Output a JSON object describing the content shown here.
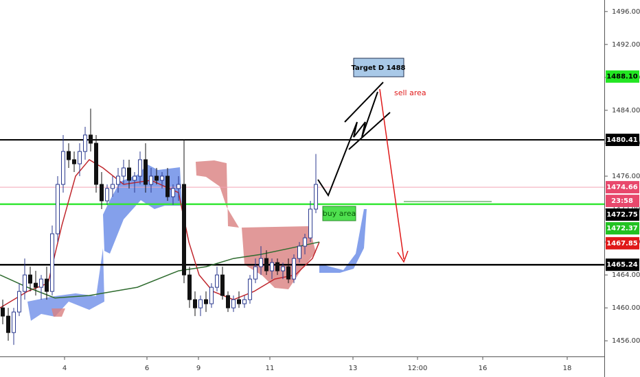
{
  "chart_data": {
    "type": "candlestick",
    "x": [
      4,
      12,
      20,
      28,
      36,
      44,
      52,
      60,
      68,
      76,
      84,
      92,
      100,
      108,
      116,
      124,
      132,
      140,
      148,
      156,
      164,
      172,
      180,
      188,
      196,
      204,
      212,
      220,
      228,
      236,
      244,
      252,
      260,
      268,
      276,
      284,
      292,
      300,
      308,
      316,
      324,
      332,
      340,
      348,
      356,
      364,
      372,
      380,
      388,
      396,
      404,
      412,
      420,
      428,
      436,
      444,
      452,
      460
    ],
    "open": [
      1460,
      1459,
      1457,
      1459.5,
      1462,
      1464,
      1463,
      1462.5,
      1463.5,
      1462,
      1469,
      1475,
      1479,
      1478,
      1477.5,
      1479,
      1481,
      1480,
      1475,
      1473,
      1474.5,
      1475,
      1476,
      1477,
      1475.5,
      1476,
      1478,
      1475,
      1476,
      1475.5,
      1476,
      1473.5,
      1474.5,
      1475,
      1464,
      1461,
      1460,
      1461,
      1460.5,
      1462.5,
      1464,
      1461.5,
      1460,
      1461,
      1460.5,
      1461,
      1463.5,
      1465,
      1466,
      1464.5,
      1465.5,
      1464.5,
      1465,
      1463.5,
      1466,
      1467.5,
      1468.5,
      1472
    ],
    "high": [
      1461,
      1460,
      1460,
      1463,
      1466,
      1465,
      1464.5,
      1464,
      1465,
      1470,
      1476,
      1481,
      1480,
      1479,
      1480,
      1482,
      1484.2,
      1481,
      1476.5,
      1475,
      1476,
      1477,
      1478,
      1478,
      1476.5,
      1479,
      1480,
      1477,
      1477,
      1476.5,
      1477,
      1475,
      1476,
      1480.5,
      1465,
      1462,
      1461.5,
      1462,
      1463,
      1465,
      1465,
      1462,
      1461.5,
      1462,
      1461.5,
      1464,
      1466,
      1467.5,
      1467,
      1466,
      1466,
      1465.5,
      1466,
      1466.5,
      1468,
      1469,
      1473,
      1478.7
    ],
    "low": [
      1458,
      1456,
      1455.5,
      1459,
      1461,
      1462,
      1461.5,
      1461,
      1461,
      1461.5,
      1468,
      1474,
      1477,
      1476.5,
      1476,
      1478,
      1479,
      1474,
      1472,
      1472.5,
      1473.5,
      1474,
      1475,
      1474.5,
      1474,
      1475,
      1474,
      1474,
      1475,
      1474.5,
      1473,
      1472.5,
      1473,
      1463,
      1460,
      1459,
      1459,
      1459.5,
      1460,
      1462,
      1461,
      1459.5,
      1459.5,
      1460,
      1460,
      1460.5,
      1463,
      1464,
      1464,
      1463.5,
      1464,
      1463.5,
      1463,
      1463,
      1465.5,
      1466.5,
      1468,
      1471.5
    ],
    "close": [
      1459,
      1457,
      1459.5,
      1462,
      1464,
      1463,
      1462.5,
      1463.5,
      1462,
      1469,
      1475,
      1479,
      1478,
      1477.5,
      1479,
      1481,
      1480,
      1475,
      1473,
      1474.5,
      1475,
      1476,
      1477,
      1475.5,
      1476,
      1478,
      1475,
      1476,
      1475.5,
      1476,
      1473.5,
      1474.5,
      1475,
      1464,
      1461,
      1460,
      1461,
      1460.5,
      1462.5,
      1464,
      1461.5,
      1460,
      1461,
      1460.5,
      1461,
      1463.5,
      1465,
      1466,
      1464.5,
      1465.5,
      1464.5,
      1465,
      1463.5,
      1466,
      1467.5,
      1468.5,
      1472,
      1475
    ],
    "up_color": "#2b3a8f",
    "down_color": "#111111",
    "series": [
      {
        "color": "#c0272d",
        "x": [
          0,
          40,
          70,
          90,
          110,
          130,
          150,
          180,
          220,
          260,
          275,
          290,
          310,
          340,
          370,
          400,
          430,
          455,
          465
        ],
        "values": [
          1460,
          1462,
          1463,
          1470,
          1476,
          1478,
          1477,
          1475,
          1475.5,
          1474,
          1468,
          1464,
          1462,
          1461,
          1462,
          1463.5,
          1464,
          1466,
          1468
        ]
      },
      {
        "color": "#2e6b2e",
        "x": [
          0,
          40,
          80,
          130,
          200,
          260,
          300,
          340,
          380,
          420,
          465
        ],
        "values": [
          1464,
          1462.5,
          1461.2,
          1461.5,
          1462.5,
          1464.5,
          1465,
          1466,
          1466.5,
          1467.2,
          1468
        ]
      }
    ],
    "levels": [
      {
        "value": 1480.41,
        "color": "#000000",
        "width": 2
      },
      {
        "value": 1474.66,
        "color": "#f2a3b3",
        "width": 1
      },
      {
        "value": 1472.6,
        "color": "#33e633",
        "width": 2.5
      },
      {
        "value": 1465.24,
        "color": "#000000",
        "width": 2.5
      }
    ],
    "price_labels": [
      {
        "value": 1488.1,
        "label": "1488.10",
        "color": "#22e622",
        "text_color": "#000000"
      },
      {
        "value": 1480.41,
        "label": "1480.41",
        "color": "#000000",
        "text_color": "#ffffff"
      },
      {
        "value": 1474.66,
        "label": "1474.66",
        "color": "#e8486c",
        "text_color": "#ffffff"
      },
      {
        "label": "23:58",
        "color": "#e8486c",
        "text_color": "#ffffff"
      },
      {
        "value": 1472.75,
        "label": "1472.75",
        "color": "#000000",
        "text_color": "#ffffff"
      },
      {
        "value": 1472.37,
        "label": "1472.37",
        "color": "#22c222",
        "text_color": "#ffffff"
      },
      {
        "value": 1467.85,
        "label": "1467.85",
        "color": "#e01919",
        "text_color": "#ffffff"
      },
      {
        "value": 1465.24,
        "label": "1465.24",
        "color": "#000000",
        "text_color": "#ffffff"
      }
    ],
    "annotations": {
      "target": "Target D 1488",
      "sell": "sell area",
      "buy": "buy area"
    },
    "xlim": [
      0,
      880
    ],
    "ylim": [
      1454.1,
      1497.4
    ],
    "xticks": [
      {
        "value": 94,
        "label": "4"
      },
      {
        "value": 214,
        "label": "6"
      },
      {
        "value": 289,
        "label": "9"
      },
      {
        "value": 393,
        "label": "11"
      },
      {
        "value": 514,
        "label": "13"
      },
      {
        "value": 608,
        "label": "12:00"
      },
      {
        "value": 703,
        "label": "16"
      },
      {
        "value": 826,
        "label": "18"
      }
    ],
    "yticks": [
      {
        "value": 1456,
        "label": "1456.00"
      },
      {
        "value": 1460,
        "label": "1460.00"
      },
      {
        "value": 1464,
        "label": "1464.00"
      },
      {
        "value": 1468,
        "label": "1468.00"
      },
      {
        "value": 1472,
        "label": "1472.00"
      },
      {
        "value": 1476,
        "label": "1476.00"
      },
      {
        "value": 1480,
        "label": "1480.00"
      },
      {
        "value": 1484,
        "label": "1484.00"
      },
      {
        "value": 1488,
        "label": "1488.00"
      },
      {
        "value": 1492,
        "label": "1492.00"
      },
      {
        "value": 1496,
        "label": "1496.00"
      }
    ]
  }
}
